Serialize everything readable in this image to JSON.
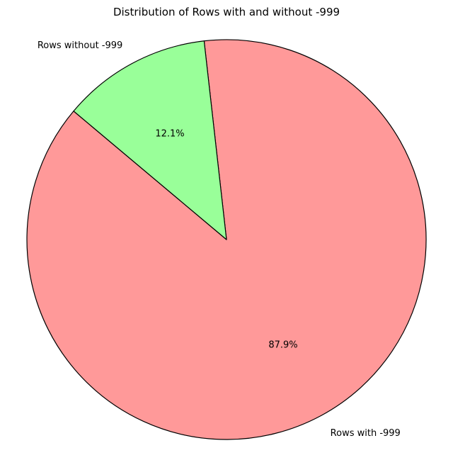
{
  "chart_data": {
    "type": "pie",
    "title": "Distribution of Rows with and without -999",
    "start_angle_deg": 140,
    "slices": [
      {
        "label": "Rows with -999",
        "value": 87.9,
        "pct_label": "87.9%",
        "color": "#ff9999"
      },
      {
        "label": "Rows without -999",
        "value": 12.1,
        "pct_label": "12.1%",
        "color": "#99ff99"
      }
    ],
    "edge_color": "#000000"
  }
}
